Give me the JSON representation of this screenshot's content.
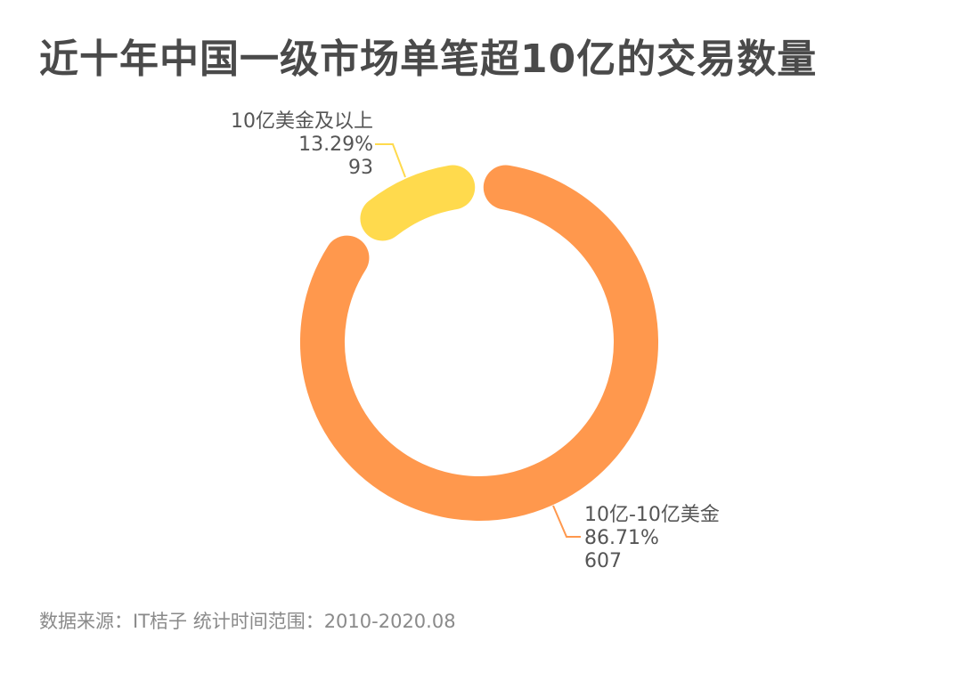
{
  "title": "近十年中国一级市场单笔超10亿的交易数量",
  "source": "数据来源：IT桔子 统计时间范围：2010-2020.08",
  "colors": {
    "orange": "#FF984D",
    "yellow": "#FFDA4D",
    "title": "#4a4a4a",
    "label": "#555555",
    "source": "#8a8a8a"
  },
  "labels": {
    "segment_1": {
      "name": "10亿-10亿美金",
      "percent": "86.71%",
      "value": "607"
    },
    "segment_2": {
      "name": "10亿美金及以上",
      "percent": "13.29%",
      "value": "93"
    }
  },
  "chart_data": {
    "type": "pie",
    "variant": "donut",
    "title": "近十年中国一级市场单笔超10亿的交易数量",
    "categories": [
      "10亿-10亿美金",
      "10亿美金及以上"
    ],
    "values": [
      607,
      93
    ],
    "percentages": [
      86.71,
      13.29
    ],
    "colors": [
      "#FF984D",
      "#FFDA4D"
    ],
    "start_angle": "top (12 o'clock), clockwise",
    "legend": "none (direct labels with leader lines)",
    "annotation": "数据来源：IT桔子 统计时间范围：2010-2020.08"
  }
}
